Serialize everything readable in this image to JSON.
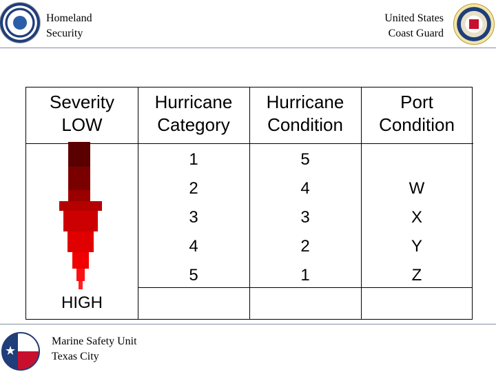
{
  "header": {
    "left_line1": "Homeland",
    "left_line2": "Security",
    "right_line1": "United States",
    "right_line2": "Coast Guard",
    "left_logo_icon": "dhs-seal-icon",
    "right_logo_icon": "uscg-seal-icon"
  },
  "table": {
    "severity": {
      "top": "Severity",
      "low": "LOW",
      "high": "HIGH"
    },
    "columns": [
      {
        "line1": "Hurricane",
        "line2": "Category"
      },
      {
        "line1": "Hurricane",
        "line2": "Condition"
      },
      {
        "line1": "Port",
        "line2": "Condition"
      }
    ],
    "category": [
      "1",
      "2",
      "3",
      "4",
      "5"
    ],
    "hurricane_condition": [
      "5",
      "4",
      "3",
      "2",
      "1"
    ],
    "port_condition": [
      "",
      "W",
      "X",
      "Y",
      "Z"
    ]
  },
  "arrow": {
    "colors": [
      "#5a0000",
      "#7a0000",
      "#9a0000",
      "#b50000",
      "#cc0000",
      "#e00000",
      "#f00000"
    ]
  },
  "footer": {
    "line1": "Marine Safety Unit",
    "line2": "Texas City",
    "logo_icon": "msu-texas-flag-icon"
  }
}
